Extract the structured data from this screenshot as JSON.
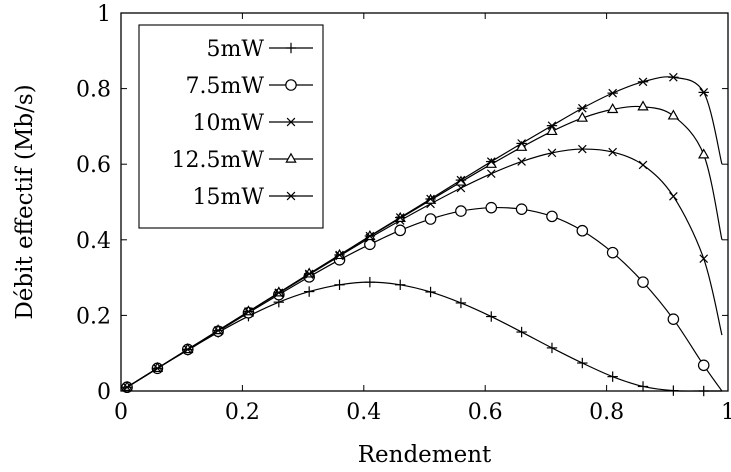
{
  "chart_data": {
    "type": "line",
    "xlabel": "Rendement",
    "ylabel": "Débit effectif (Mb/s)",
    "xlim": [
      0,
      1
    ],
    "ylim": [
      0,
      1
    ],
    "x_ticks": [
      "0",
      "0.2",
      "0.4",
      "0.6",
      "0.8",
      "1"
    ],
    "y_ticks": [
      "0",
      "0.2",
      "0.4",
      "0.6",
      "0.8",
      "1"
    ],
    "grid": false,
    "legend_position": "top-left",
    "series": [
      {
        "name": "5mW",
        "marker": "plus",
        "color": "#000000",
        "x": [
          0.01,
          0.06,
          0.11,
          0.16,
          0.21,
          0.26,
          0.31,
          0.36,
          0.41,
          0.46,
          0.51,
          0.56,
          0.61,
          0.66,
          0.71,
          0.76,
          0.81,
          0.86,
          0.91,
          0.96
        ],
        "y": [
          0.01,
          0.06,
          0.108,
          0.155,
          0.198,
          0.235,
          0.263,
          0.281,
          0.288,
          0.281,
          0.262,
          0.233,
          0.197,
          0.156,
          0.114,
          0.074,
          0.038,
          0.012,
          0.001,
          0.0
        ],
        "curve_x": [
          0.005,
          0.06,
          0.11,
          0.16,
          0.21,
          0.26,
          0.31,
          0.36,
          0.41,
          0.46,
          0.51,
          0.56,
          0.61,
          0.66,
          0.71,
          0.76,
          0.81,
          0.86,
          0.91,
          0.96,
          0.99
        ],
        "curve_y": [
          0.005,
          0.06,
          0.108,
          0.155,
          0.198,
          0.235,
          0.263,
          0.281,
          0.288,
          0.281,
          0.262,
          0.233,
          0.197,
          0.156,
          0.114,
          0.074,
          0.038,
          0.012,
          0.001,
          0.0,
          0.0
        ]
      },
      {
        "name": "7.5mW",
        "marker": "circle",
        "color": "#000000",
        "x": [
          0.01,
          0.06,
          0.11,
          0.16,
          0.21,
          0.26,
          0.31,
          0.36,
          0.41,
          0.46,
          0.51,
          0.56,
          0.61,
          0.66,
          0.71,
          0.76,
          0.81,
          0.86,
          0.91,
          0.96
        ],
        "y": [
          0.01,
          0.06,
          0.11,
          0.158,
          0.207,
          0.255,
          0.302,
          0.347,
          0.388,
          0.425,
          0.455,
          0.476,
          0.485,
          0.481,
          0.462,
          0.424,
          0.366,
          0.288,
          0.19,
          0.068
        ],
        "curve_x": [
          0.005,
          0.06,
          0.11,
          0.16,
          0.21,
          0.26,
          0.31,
          0.36,
          0.41,
          0.46,
          0.51,
          0.56,
          0.61,
          0.66,
          0.71,
          0.76,
          0.81,
          0.86,
          0.91,
          0.96,
          0.99
        ],
        "curve_y": [
          0.005,
          0.06,
          0.11,
          0.158,
          0.207,
          0.255,
          0.302,
          0.347,
          0.388,
          0.425,
          0.455,
          0.476,
          0.485,
          0.481,
          0.462,
          0.424,
          0.366,
          0.288,
          0.19,
          0.068,
          0.0
        ]
      },
      {
        "name": "10mW",
        "marker": "cross",
        "color": "#000000",
        "x": [
          0.01,
          0.06,
          0.11,
          0.16,
          0.21,
          0.26,
          0.31,
          0.36,
          0.41,
          0.46,
          0.51,
          0.56,
          0.61,
          0.66,
          0.71,
          0.76,
          0.81,
          0.86,
          0.91,
          0.96
        ],
        "y": [
          0.01,
          0.06,
          0.11,
          0.16,
          0.21,
          0.259,
          0.308,
          0.357,
          0.405,
          0.451,
          0.495,
          0.537,
          0.575,
          0.607,
          0.63,
          0.64,
          0.632,
          0.598,
          0.515,
          0.35
        ],
        "curve_x": [
          0.005,
          0.06,
          0.11,
          0.16,
          0.21,
          0.26,
          0.31,
          0.36,
          0.41,
          0.46,
          0.51,
          0.56,
          0.61,
          0.66,
          0.71,
          0.76,
          0.81,
          0.86,
          0.91,
          0.96,
          0.99
        ],
        "curve_y": [
          0.005,
          0.06,
          0.11,
          0.16,
          0.21,
          0.259,
          0.308,
          0.357,
          0.405,
          0.451,
          0.495,
          0.537,
          0.575,
          0.607,
          0.63,
          0.64,
          0.632,
          0.598,
          0.515,
          0.35,
          0.148
        ]
      },
      {
        "name": "12.5mW",
        "marker": "triangle",
        "color": "#000000",
        "x": [
          0.01,
          0.06,
          0.11,
          0.16,
          0.21,
          0.26,
          0.31,
          0.36,
          0.41,
          0.46,
          0.51,
          0.56,
          0.61,
          0.66,
          0.71,
          0.76,
          0.81,
          0.86,
          0.91,
          0.96
        ],
        "y": [
          0.01,
          0.06,
          0.11,
          0.16,
          0.21,
          0.26,
          0.31,
          0.359,
          0.409,
          0.457,
          0.505,
          0.553,
          0.6,
          0.645,
          0.687,
          0.722,
          0.745,
          0.752,
          0.728,
          0.625
        ],
        "curve_x": [
          0.005,
          0.06,
          0.11,
          0.16,
          0.21,
          0.26,
          0.31,
          0.36,
          0.41,
          0.46,
          0.51,
          0.56,
          0.61,
          0.66,
          0.71,
          0.76,
          0.81,
          0.86,
          0.91,
          0.96,
          0.99
        ],
        "curve_y": [
          0.005,
          0.06,
          0.11,
          0.16,
          0.21,
          0.26,
          0.31,
          0.359,
          0.409,
          0.457,
          0.505,
          0.553,
          0.6,
          0.645,
          0.687,
          0.722,
          0.745,
          0.752,
          0.728,
          0.625,
          0.4
        ]
      },
      {
        "name": "15mW",
        "marker": "asterisk",
        "color": "#000000",
        "x": [
          0.01,
          0.06,
          0.11,
          0.16,
          0.21,
          0.26,
          0.31,
          0.36,
          0.41,
          0.46,
          0.51,
          0.56,
          0.61,
          0.66,
          0.71,
          0.76,
          0.81,
          0.86,
          0.91,
          0.96
        ],
        "y": [
          0.01,
          0.06,
          0.11,
          0.16,
          0.21,
          0.26,
          0.31,
          0.36,
          0.41,
          0.459,
          0.508,
          0.558,
          0.607,
          0.655,
          0.702,
          0.748,
          0.788,
          0.818,
          0.83,
          0.79
        ],
        "curve_x": [
          0.005,
          0.06,
          0.11,
          0.16,
          0.21,
          0.26,
          0.31,
          0.36,
          0.41,
          0.46,
          0.51,
          0.56,
          0.61,
          0.66,
          0.71,
          0.76,
          0.81,
          0.86,
          0.91,
          0.96,
          0.99
        ],
        "curve_y": [
          0.005,
          0.06,
          0.11,
          0.16,
          0.21,
          0.26,
          0.31,
          0.36,
          0.41,
          0.459,
          0.508,
          0.558,
          0.607,
          0.655,
          0.702,
          0.748,
          0.788,
          0.818,
          0.83,
          0.79,
          0.6
        ]
      }
    ]
  }
}
